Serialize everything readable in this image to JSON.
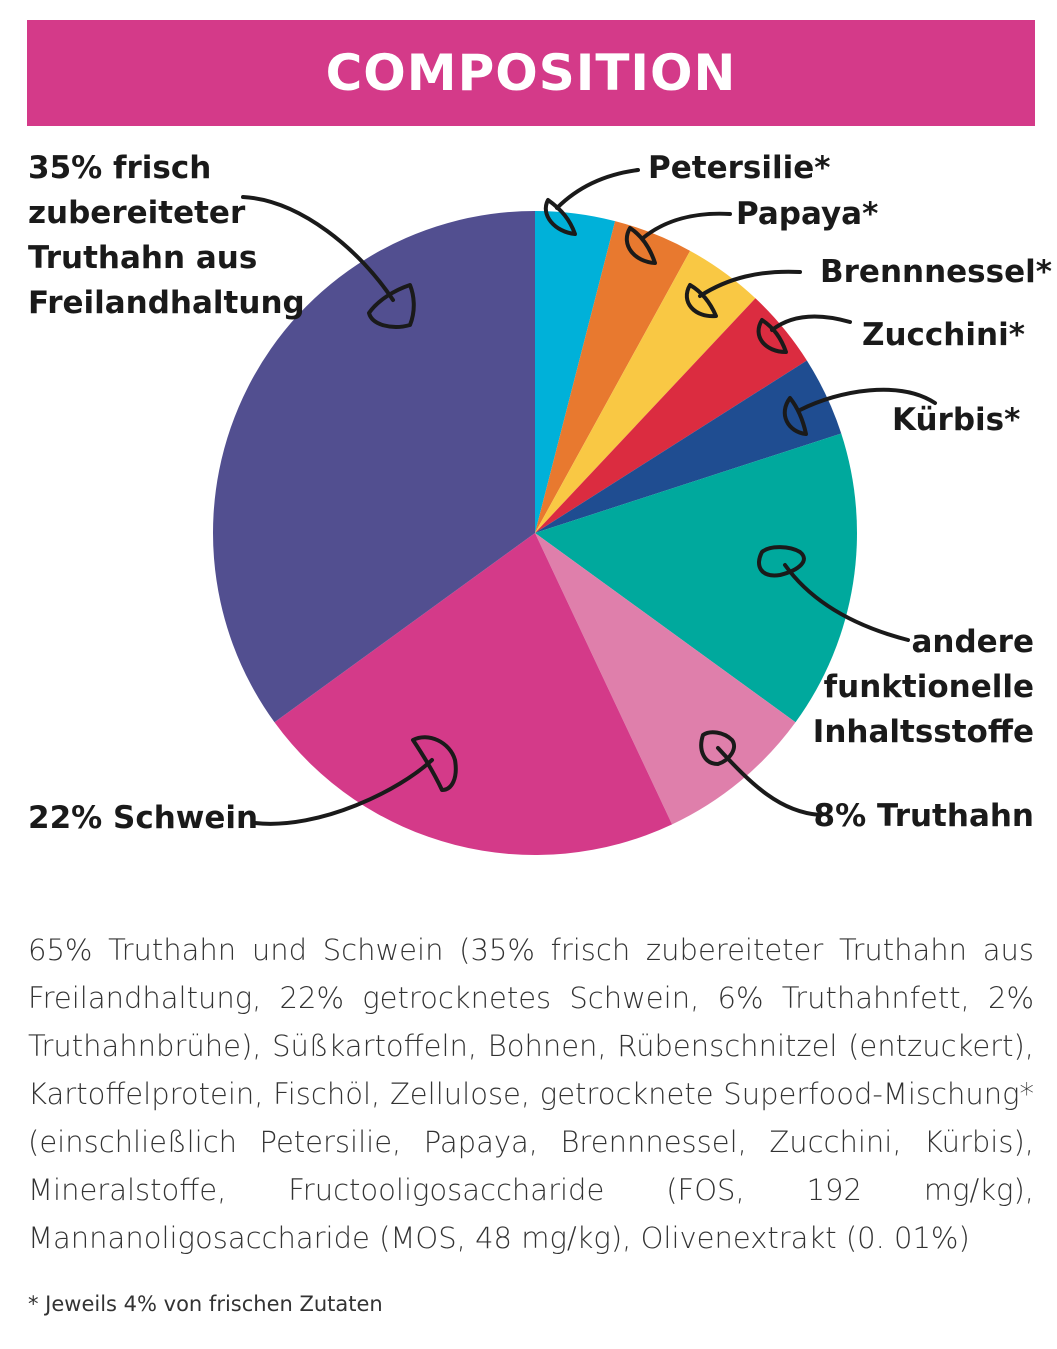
{
  "title": "COMPOSITION",
  "chart_data": {
    "type": "pie",
    "slices": [
      {
        "key": "petersilie",
        "value": 4,
        "color": "#00b1d9"
      },
      {
        "key": "papaya",
        "value": 4,
        "color": "#e8792f"
      },
      {
        "key": "brennnessel",
        "value": 4,
        "color": "#f9c844"
      },
      {
        "key": "zucchini",
        "value": 4,
        "color": "#db2c40"
      },
      {
        "key": "kuerbis",
        "value": 4,
        "color": "#1f4d91"
      },
      {
        "key": "andere",
        "value": 15,
        "color": "#00a99d"
      },
      {
        "key": "truthahn8",
        "value": 8,
        "color": "#df7fab"
      },
      {
        "key": "schwein",
        "value": 22,
        "color": "#d43a89"
      },
      {
        "key": "truthahn35",
        "value": 35,
        "color": "#524f90"
      }
    ],
    "labels": {
      "petersilie": [
        "Petersilie*"
      ],
      "papaya": [
        "Papaya*"
      ],
      "brennnessel": [
        "Brennnessel*"
      ],
      "zucchini": [
        "Zucchini*"
      ],
      "kuerbis": [
        "Kürbis*"
      ],
      "andere": [
        "andere",
        "funktionelle",
        "Inhaltsstoffe"
      ],
      "truthahn8": [
        "8% Truthahn"
      ],
      "schwein": [
        "22% Schwein"
      ],
      "truthahn35": [
        "35% frisch",
        "zubereiteter",
        "Truthahn aus",
        "Freilandhaltung"
      ]
    }
  },
  "description": "65% Truthahn und Schwein (35% frisch zubereiteter Truthahn aus Freilandhaltung, 22% getrocknetes Schwein, 6% Truthahnfett, 2% Truthahnbrühe), Süßkartoffeln, Bohnen, Rübenschnitzel (entzuckert), Kartoffelprotein, Fischöl, Zellulose, getrocknete Superfood-Mischung* (einschließlich Petersilie, Papaya, Brennnessel, Zucchini, Kürbis), Mineralstoffe, Fructooligosaccharide (FOS, 192 mg/kg), Mannanoligosaccharide (MOS, 48 mg/kg), Olivenextrakt (0. 01%)",
  "footnote": "* Jeweils 4% von frischen Zutaten"
}
